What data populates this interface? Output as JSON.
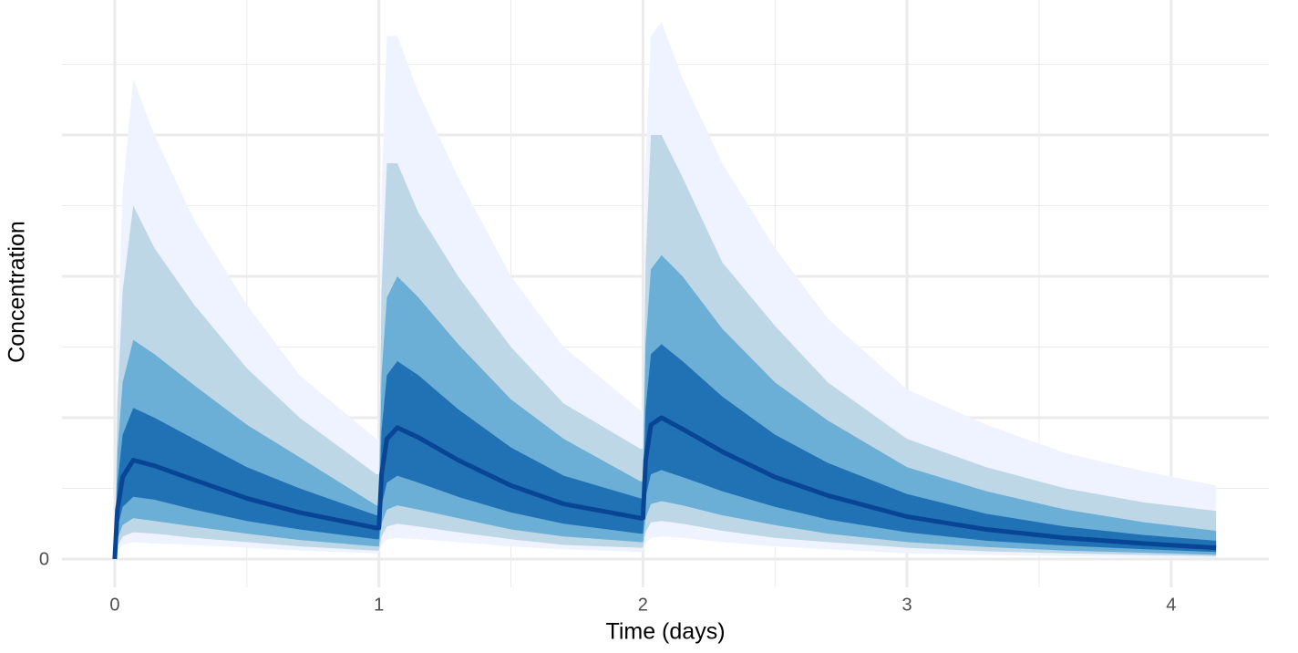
{
  "chart_data": {
    "type": "fan",
    "x_label": "Time (days)",
    "y_label": "Concentration",
    "xlim": [
      -0.2,
      4.37
    ],
    "ylim": [
      -2,
      39.55
    ],
    "xticks": [
      0,
      1,
      2,
      3,
      4
    ],
    "x_minor_grid": [
      0.5,
      1.5,
      2.5,
      3.5
    ],
    "yticks": [
      0
    ],
    "y_major_grid": [
      10,
      20,
      30
    ],
    "y_minor_grid": [
      5,
      15,
      25,
      35
    ],
    "grid": true,
    "x": [
      0,
      0.01,
      0.03,
      0.07,
      0.15,
      0.3,
      0.5,
      0.7,
      0.99,
      1.0,
      1.01,
      1.03,
      1.07,
      1.15,
      1.3,
      1.5,
      1.7,
      1.99,
      2.0,
      2.01,
      2.03,
      2.07,
      2.15,
      2.3,
      2.5,
      2.7,
      3.0,
      3.3,
      3.6,
      3.9,
      4.17
    ],
    "series": [
      {
        "color": "#eff3ff",
        "upper": [
          0,
          15,
          26,
          34,
          30,
          24,
          18,
          13,
          8.5,
          8.5,
          26,
          37,
          37,
          33,
          27,
          20,
          15,
          10.5,
          10.5,
          28,
          37,
          38,
          34,
          28,
          22,
          17,
          12,
          9.5,
          7.5,
          6.2,
          5.2
        ],
        "lower": [
          0,
          0.6,
          1.0,
          1.2,
          1.1,
          1.0,
          0.8,
          0.6,
          0.4,
          0.4,
          1.0,
          1.4,
          1.5,
          1.4,
          1.2,
          0.9,
          0.7,
          0.5,
          0.5,
          1.1,
          1.5,
          1.6,
          1.5,
          1.2,
          0.9,
          0.7,
          0.4,
          0.3,
          0.2,
          0.15,
          0.1
        ]
      },
      {
        "color": "#bdd7e7",
        "upper": [
          0,
          11,
          19,
          25,
          22,
          18,
          13.5,
          10,
          6.0,
          6.0,
          19,
          28,
          28,
          24.5,
          20,
          15,
          11,
          7.8,
          7.8,
          21,
          30,
          30,
          27,
          21,
          16.5,
          12.5,
          8.5,
          6.5,
          5,
          4,
          3.4
        ],
        "lower": [
          0,
          0.9,
          1.6,
          1.9,
          1.8,
          1.5,
          1.2,
          0.9,
          0.6,
          0.6,
          1.6,
          2.3,
          2.5,
          2.3,
          1.9,
          1.4,
          1.0,
          0.8,
          0.8,
          1.9,
          2.6,
          2.7,
          2.5,
          2.0,
          1.5,
          1.2,
          0.8,
          0.55,
          0.4,
          0.3,
          0.2
        ]
      },
      {
        "color": "#6baed6",
        "upper": [
          0,
          7.5,
          12.5,
          15.5,
          14.5,
          12.3,
          9.5,
          7.2,
          3.8,
          3.8,
          13,
          18.5,
          20,
          18.5,
          15.2,
          11.3,
          8.5,
          5.5,
          5.5,
          15.2,
          20.5,
          21.5,
          20,
          16.3,
          12.5,
          9.8,
          6.5,
          4.8,
          3.5,
          2.6,
          2.0
        ],
        "lower": [
          0,
          1.4,
          2.4,
          2.9,
          2.7,
          2.3,
          1.8,
          1.35,
          0.9,
          0.9,
          2.5,
          3.5,
          3.8,
          3.5,
          2.9,
          2.1,
          1.6,
          1.2,
          1.2,
          2.9,
          3.9,
          4.1,
          3.8,
          3.1,
          2.4,
          1.8,
          1.2,
          0.85,
          0.6,
          0.45,
          0.3
        ]
      },
      {
        "color": "#2171b5",
        "upper": [
          0,
          5.3,
          8.8,
          10.7,
          10,
          8.5,
          6.5,
          5,
          3.1,
          3.1,
          9.1,
          13,
          14,
          13,
          10.6,
          7.9,
          5.9,
          4.3,
          4.3,
          10.6,
          14.5,
          15.2,
          14,
          11.5,
          8.8,
          6.8,
          4.6,
          3.2,
          2.3,
          1.7,
          1.3
        ],
        "lower": [
          0,
          2.2,
          3.7,
          4.4,
          4.2,
          3.5,
          2.7,
          2.1,
          1.4,
          1.4,
          3.8,
          5.4,
          5.9,
          5.4,
          4.4,
          3.3,
          2.5,
          1.8,
          1.8,
          4.4,
          6.0,
          6.3,
          5.8,
          4.8,
          3.7,
          2.8,
          1.9,
          1.3,
          0.95,
          0.7,
          0.5
        ]
      }
    ],
    "median": {
      "color": "#084594",
      "values": [
        0,
        3.5,
        5.8,
        7.0,
        6.6,
        5.6,
        4.3,
        3.3,
        2.2,
        2.2,
        6.0,
        8.5,
        9.3,
        8.6,
        7.0,
        5.2,
        3.9,
        2.9,
        2.9,
        7.0,
        9.5,
        10.0,
        9.2,
        7.6,
        5.8,
        4.5,
        3.0,
        2.1,
        1.5,
        1.1,
        0.8
      ]
    }
  }
}
